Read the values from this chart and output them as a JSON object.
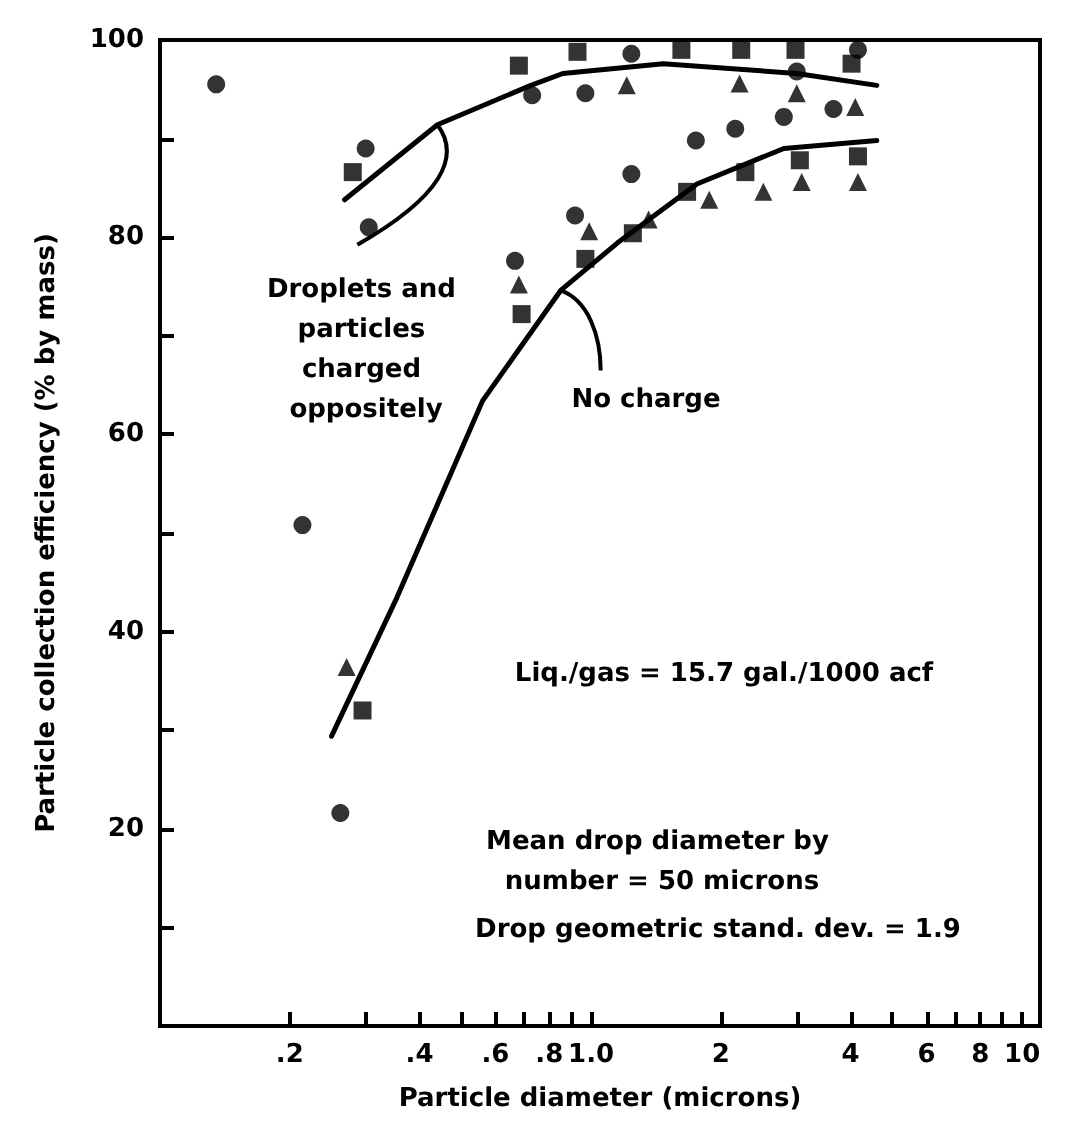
{
  "chart_data": {
    "type": "scatter",
    "xlabel": "Particle diameter (microns)",
    "ylabel": "Particle collection efficiency (% by mass)",
    "log": "x",
    "grid": false,
    "xlim": [
      0.1,
      11
    ],
    "ylim": [
      0,
      100
    ],
    "xticks": [
      {
        "value": 0.2,
        "label": ".2"
      },
      {
        "value": 0.3,
        "label": null
      },
      {
        "value": 0.4,
        "label": ".4"
      },
      {
        "value": 0.5,
        "label": null
      },
      {
        "value": 0.6,
        "label": ".6"
      },
      {
        "value": 0.7,
        "label": null
      },
      {
        "value": 0.8,
        "label": ".8"
      },
      {
        "value": 0.9,
        "label": null
      },
      {
        "value": 1,
        "label": "1.0"
      },
      2,
      {
        "value": 3,
        "label": null
      },
      4,
      {
        "value": 5,
        "label": null
      },
      6,
      {
        "value": 7,
        "label": null
      },
      8,
      {
        "value": 9,
        "label": null
      },
      10
    ],
    "yticks": [
      {
        "value": 10,
        "label": null
      },
      20,
      {
        "value": 30,
        "label": null
      },
      40,
      {
        "value": 50,
        "label": null
      },
      60,
      {
        "value": 70,
        "label": null
      },
      80,
      {
        "value": 90,
        "label": null
      },
      100
    ],
    "series": [
      {
        "color": "#000000",
        "marker": "circle",
        "x": [
          0.135,
          0.214,
          0.262,
          0.666,
          0.918,
          1.24,
          1.75,
          2.16,
          2.8,
          3.65
        ],
        "values": [
          95.5,
          50.8,
          21.6,
          77.6,
          82.2,
          86.4,
          89.8,
          91,
          92.2,
          93
        ]
      },
      {
        "color": "#000000",
        "marker": "triangle",
        "x": [
          0.271,
          0.68,
          0.99,
          1.36,
          1.88,
          2.51,
          3.08,
          4.16
        ],
        "values": [
          36.4,
          75.2,
          80.6,
          81.8,
          83.8,
          84.6,
          85.6,
          85.6
        ]
      },
      {
        "color": "#000000",
        "marker": "square",
        "x": [
          0.295,
          0.69,
          0.97,
          1.25,
          1.67,
          2.28,
          3.05,
          4.16
        ],
        "values": [
          32,
          72.2,
          77.8,
          80.4,
          84.6,
          86.6,
          87.8,
          88.2
        ]
      },
      {
        "color": "#000000",
        "marker": "square",
        "x": [
          0.28,
          0.68,
          0.93,
          1.62,
          2.23,
          2.98,
          4.02
        ],
        "values": [
          86.6,
          97.4,
          98.8,
          99,
          99,
          99,
          97.6
        ]
      },
      {
        "color": "#000000",
        "marker": "circle",
        "x": [
          0.3,
          0.305,
          0.73,
          0.97,
          1.24,
          3.0,
          4.16
        ],
        "values": [
          89,
          81,
          94.4,
          94.6,
          98.6,
          96.8,
          99
        ]
      },
      {
        "color": "#000000",
        "marker": "triangle",
        "x": [
          1.21,
          2.21,
          3.0,
          4.1
        ],
        "values": [
          95.4,
          95.6,
          94.6,
          93.2
        ]
      },
      {
        "type": "line",
        "color": "#000000",
        "marker": "none",
        "line_style": "solid",
        "x": [
          0.268,
          0.44,
          0.725,
          0.86,
          1.47,
          3.0,
          4.6
        ],
        "values": [
          83.8,
          91.4,
          95.4,
          96.6,
          97.6,
          96.6,
          95.4
        ]
      },
      {
        "type": "line",
        "color": "#000000",
        "marker": "none",
        "line_style": "solid",
        "x": [
          0.25,
          0.354,
          0.56,
          0.85,
          1.15,
          1.76,
          2.8,
          4.6
        ],
        "values": [
          29.4,
          43.4,
          63.4,
          74.6,
          79.4,
          85.4,
          89,
          89.8
        ]
      }
    ],
    "annotations": [
      {
        "text": "Droplets and particles charged oppositely",
        "x": 0.44,
        "y": 91.4
      },
      {
        "text": "No charge",
        "x": 0.85,
        "y": 74.6
      },
      "Liq./gas = 15.7 gal./1000 acf",
      "Mean drop diameter by number = 50 microns",
      "Drop geometric stand. dev. = 1.9"
    ]
  }
}
